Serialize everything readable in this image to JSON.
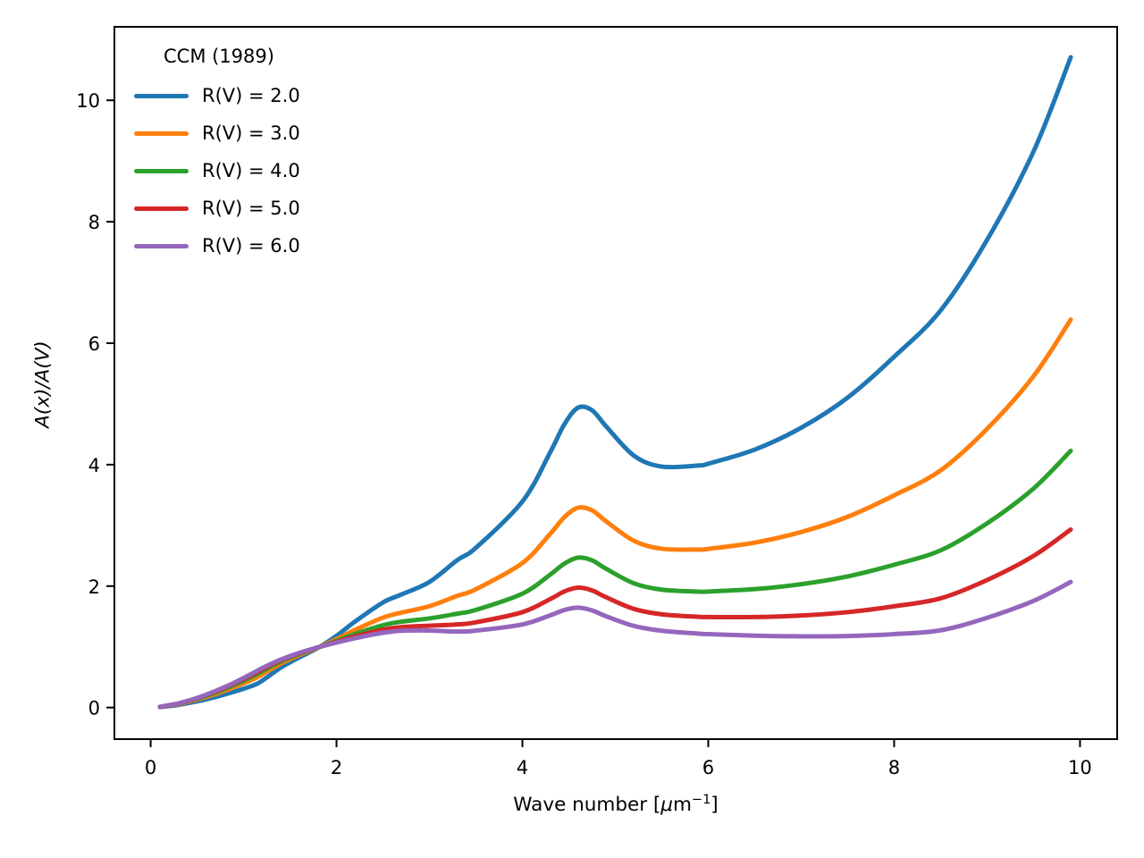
{
  "figure": {
    "background": "#ffffff",
    "text_color": "#000000",
    "spine_color": "#000000"
  },
  "chart_data": {
    "type": "line",
    "title": "",
    "xlabel": "Wave number [μm⁻¹]",
    "ylabel": "A(x)/A(V)",
    "xlabel_parts": {
      "prefix": "Wave number [",
      "mu": "μ",
      "unit": "m",
      "exponent": "−1",
      "suffix": "]"
    },
    "xlim": [
      -0.39,
      10.4
    ],
    "ylim": [
      -0.52,
      11.21
    ],
    "x_ticks": [
      0,
      2,
      4,
      6,
      8,
      10
    ],
    "y_ticks": [
      0,
      2,
      4,
      6,
      8,
      10
    ],
    "grid": false,
    "legend": {
      "title": "CCM (1989)",
      "position": "upper left",
      "frame": false
    },
    "x": [
      0.1,
      0.3,
      0.5,
      0.7,
      0.9,
      1.1,
      1.2,
      1.4,
      1.6,
      1.8,
      2.0,
      2.2,
      2.5,
      2.7,
      3.0,
      3.3,
      3.5,
      4.0,
      4.3,
      4.45,
      4.6,
      4.75,
      4.9,
      5.2,
      5.5,
      5.9,
      6.0,
      6.5,
      7.0,
      7.5,
      8.0,
      8.5,
      9.0,
      9.5,
      9.9
    ],
    "series": [
      {
        "label": "R(V) = 2.0",
        "rv": "2.0",
        "color": "#1f77b4",
        "values": [
          0.008,
          0.045,
          0.102,
          0.175,
          0.262,
          0.362,
          0.442,
          0.658,
          0.827,
          0.983,
          1.181,
          1.417,
          1.73,
          1.863,
          2.069,
          2.429,
          2.631,
          3.393,
          4.205,
          4.66,
          4.94,
          4.895,
          4.632,
          4.148,
          3.968,
          3.987,
          4.016,
          4.248,
          4.608,
          5.104,
          5.777,
          6.539,
          7.701,
          9.157,
          10.708
        ]
      },
      {
        "label": "R(V) = 3.0",
        "rv": "3.0",
        "color": "#ff7f0e",
        "values": [
          0.01,
          0.057,
          0.131,
          0.224,
          0.336,
          0.464,
          0.545,
          0.724,
          0.864,
          0.987,
          1.126,
          1.28,
          1.481,
          1.564,
          1.669,
          1.84,
          1.949,
          2.38,
          2.862,
          3.133,
          3.292,
          3.248,
          3.068,
          2.746,
          2.616,
          2.602,
          2.613,
          2.716,
          2.891,
          3.141,
          3.494,
          3.905,
          4.589,
          5.457,
          6.388
        ]
      },
      {
        "label": "R(V) = 4.0",
        "rv": "4.0",
        "color": "#2ca02c",
        "values": [
          0.011,
          0.064,
          0.145,
          0.249,
          0.373,
          0.516,
          0.597,
          0.757,
          0.883,
          0.989,
          1.098,
          1.212,
          1.356,
          1.414,
          1.468,
          1.546,
          1.608,
          1.875,
          2.19,
          2.369,
          2.469,
          2.424,
          2.286,
          2.045,
          1.941,
          1.909,
          1.911,
          1.95,
          2.032,
          2.16,
          2.352,
          2.589,
          3.034,
          3.607,
          4.228
        ]
      },
      {
        "label": "R(V) = 5.0",
        "rv": "5.0",
        "color": "#d62728",
        "values": [
          0.012,
          0.067,
          0.154,
          0.264,
          0.396,
          0.546,
          0.628,
          0.777,
          0.894,
          0.991,
          1.082,
          1.171,
          1.281,
          1.325,
          1.348,
          1.369,
          1.404,
          1.571,
          1.787,
          1.911,
          1.974,
          1.929,
          1.817,
          1.624,
          1.535,
          1.494,
          1.49,
          1.49,
          1.516,
          1.571,
          1.667,
          1.799,
          2.1,
          2.497,
          2.932
        ]
      },
      {
        "label": "R(V) = 6.0",
        "rv": "6.0",
        "color": "#9467bd",
        "values": [
          0.012,
          0.07,
          0.159,
          0.274,
          0.41,
          0.567,
          0.648,
          0.79,
          0.901,
          0.992,
          1.071,
          1.143,
          1.231,
          1.265,
          1.268,
          1.251,
          1.267,
          1.369,
          1.519,
          1.606,
          1.645,
          1.6,
          1.504,
          1.344,
          1.265,
          1.217,
          1.209,
          1.184,
          1.173,
          1.178,
          1.21,
          1.272,
          1.478,
          1.757,
          2.068
        ]
      }
    ]
  }
}
